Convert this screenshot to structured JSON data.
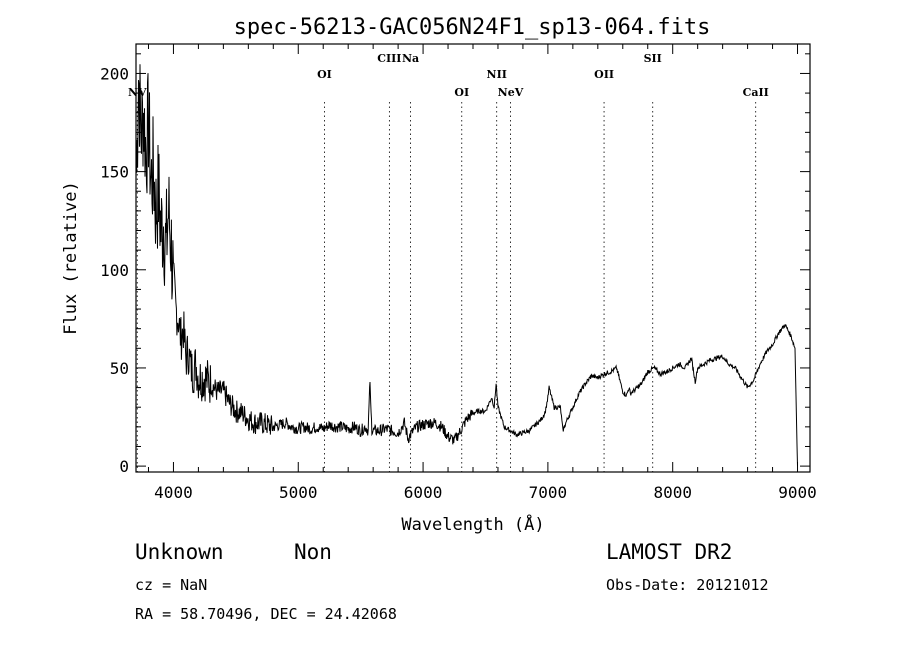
{
  "chart_data": {
    "type": "line",
    "title": "spec-56213-GAC056N24F1_sp13-064.fits",
    "xlabel": "Wavelength (Å)",
    "ylabel": "Flux (relative)",
    "xlim": [
      3700,
      9100
    ],
    "ylim": [
      -3,
      215
    ],
    "x_ticks": [
      4000,
      5000,
      6000,
      7000,
      8000,
      9000
    ],
    "y_ticks": [
      0,
      50,
      100,
      150,
      200
    ],
    "x_tick_labels": [
      "4000",
      "5000",
      "6000",
      "7000",
      "8000",
      "9000"
    ],
    "y_tick_labels": [
      "0",
      "50",
      "100",
      "150",
      "200"
    ],
    "grid": false,
    "line_color": "#000000",
    "marker_color": "#000000",
    "lines": [
      {
        "label": "NV",
        "wavelength": 3710,
        "row": 1
      },
      {
        "label": "OI",
        "wavelength": 5210,
        "row": 0
      },
      {
        "label": "CIII",
        "wavelength": 5730,
        "row": -1
      },
      {
        "label": "Na",
        "wavelength": 5900,
        "row": -1
      },
      {
        "label": "OI",
        "wavelength": 6310,
        "row": 1
      },
      {
        "label": "NII",
        "wavelength": 6590,
        "row": 0
      },
      {
        "label": "NeV",
        "wavelength": 6700,
        "row": 1
      },
      {
        "label": "OII",
        "wavelength": 7450,
        "row": 0
      },
      {
        "label": "SII",
        "wavelength": 7840,
        "row": -1
      },
      {
        "label": "CaII",
        "wavelength": 8665,
        "row": 1
      }
    ],
    "series": [
      {
        "x": [
          3705,
          3720,
          3740,
          3760,
          3780,
          3800,
          3820,
          3840,
          3860,
          3880,
          3900,
          3920,
          3940,
          3960,
          3980,
          4000,
          4020,
          4040,
          4060,
          4080,
          4100,
          4120,
          4140,
          4160,
          4180,
          4200,
          4250,
          4300,
          4350,
          4400,
          4450,
          4500,
          4550,
          4600,
          4650,
          4700,
          4750,
          4800,
          4850,
          4900,
          4950,
          5000,
          5050,
          5100,
          5150,
          5200,
          5250,
          5300,
          5350,
          5400,
          5450,
          5500,
          5540,
          5560,
          5575,
          5580,
          5590,
          5600,
          5650,
          5700,
          5750,
          5800,
          5850,
          5880,
          5900,
          5920,
          5950,
          6000,
          6050,
          6100,
          6150,
          6200,
          6250,
          6300,
          6350,
          6400,
          6450,
          6500,
          6550,
          6570,
          6585,
          6600,
          6620,
          6650,
          6700,
          6750,
          6800,
          6850,
          6900,
          6950,
          6980,
          7000,
          7010,
          7050,
          7100,
          7120,
          7150,
          7200,
          7250,
          7300,
          7350,
          7400,
          7450,
          7500,
          7550,
          7600,
          7630,
          7650,
          7660,
          7700,
          7750,
          7800,
          7850,
          7900,
          7950,
          8000,
          8050,
          8100,
          8150,
          8180,
          8200,
          8250,
          8300,
          8350,
          8400,
          8450,
          8500,
          8550,
          8600,
          8650,
          8700,
          8750,
          8800,
          8850,
          8900,
          8950,
          8980,
          9000
        ],
        "values": [
          150,
          200,
          170,
          180,
          160,
          175,
          145,
          150,
          130,
          140,
          120,
          125,
          110,
          130,
          115,
          95,
          80,
          75,
          65,
          70,
          55,
          58,
          50,
          48,
          52,
          45,
          45,
          42,
          38,
          38,
          32,
          28,
          27,
          24,
          22,
          22,
          21,
          20,
          21,
          22,
          20,
          19,
          20,
          19,
          20,
          19,
          21,
          20,
          20,
          19,
          20,
          18,
          20,
          18,
          44,
          30,
          19,
          18,
          18,
          19,
          18,
          17,
          22,
          14,
          16,
          18,
          20,
          21,
          22,
          22,
          20,
          15,
          13,
          18,
          24,
          27,
          28,
          28,
          35,
          30,
          42,
          30,
          26,
          20,
          18,
          16,
          17,
          18,
          21,
          24,
          28,
          35,
          40,
          30,
          30,
          18,
          23,
          30,
          37,
          42,
          46,
          45,
          47,
          48,
          50,
          38,
          36,
          40,
          37,
          39,
          42,
          48,
          50,
          47,
          48,
          50,
          52,
          50,
          55,
          43,
          50,
          52,
          54,
          55,
          56,
          52,
          50,
          45,
          40,
          44,
          52,
          58,
          62,
          68,
          72,
          66,
          60,
          0
        ]
      }
    ],
    "info": {
      "object_class": "Unknown",
      "subclass": "Non",
      "survey": "LAMOST DR2",
      "redshift_text": "cz = NaN",
      "obs_date_text": "Obs-Date: 20121012",
      "coords_text": "RA =  58.70496, DEC =  24.42068"
    }
  }
}
